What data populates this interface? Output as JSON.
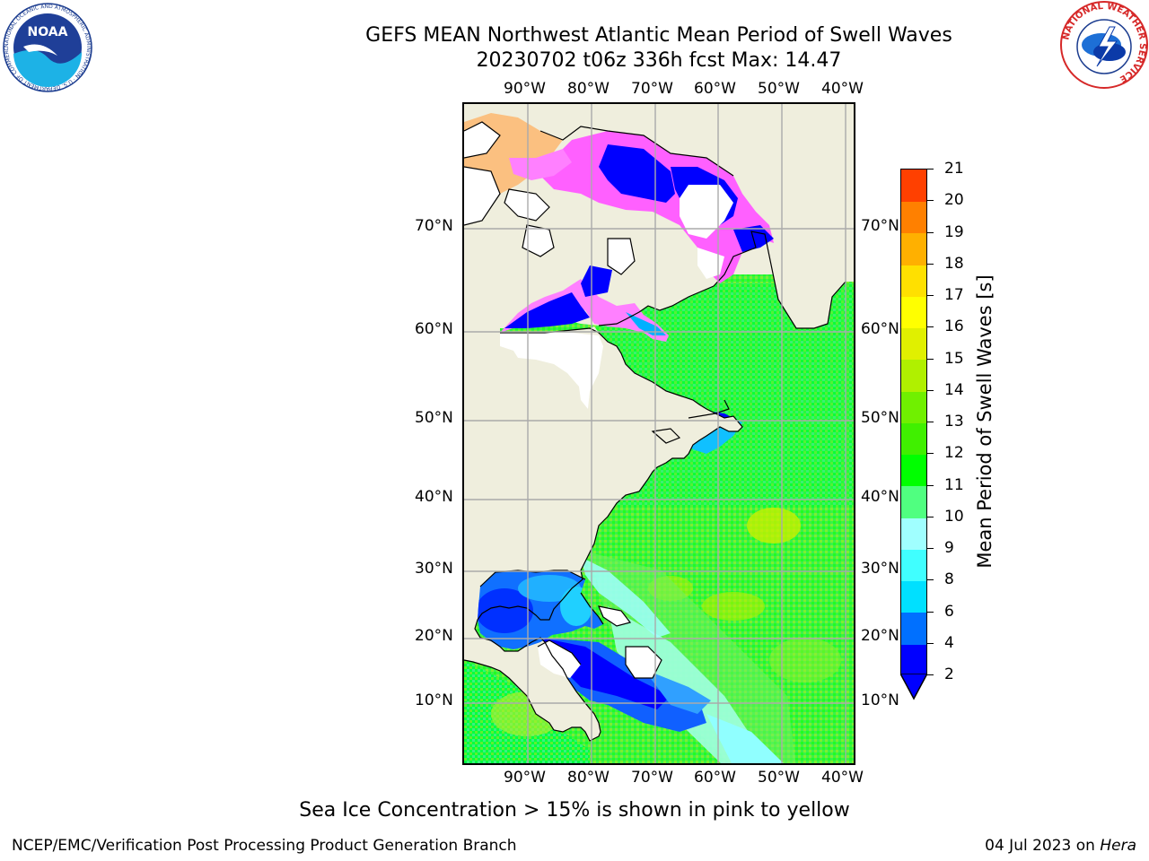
{
  "title": {
    "line1": "GEFS MEAN Northwest Atlantic Mean Period of Swell Waves",
    "line2": "20230702 t06z 336h fcst   Max: 14.47"
  },
  "map": {
    "lon_labels": [
      "90°W",
      "80°W",
      "70°W",
      "60°W",
      "50°W",
      "40°W"
    ],
    "lat_labels": [
      "70°N",
      "60°N",
      "50°N",
      "40°N",
      "30°N",
      "20°N",
      "10°N"
    ],
    "colors": {
      "land": "#efeedd",
      "ice": "#ffffff",
      "gridline": "#aaaaaa"
    }
  },
  "colorbar": {
    "title": "Mean Period of Swell Waves [s]",
    "tick_labels": [
      "2",
      "4",
      "6",
      "8",
      "9",
      "10",
      "11",
      "12",
      "13",
      "14",
      "15",
      "16",
      "17",
      "18",
      "19",
      "20",
      "21"
    ],
    "colors": [
      "#0000ff",
      "#0070ff",
      "#00e0ff",
      "#40ffff",
      "#a0ffff",
      "#50ff80",
      "#00ff00",
      "#40f000",
      "#70f000",
      "#b0f000",
      "#e0f000",
      "#ffff00",
      "#ffe000",
      "#ffb000",
      "#ff8000",
      "#ff4000",
      "#ff0000"
    ],
    "extend_min_color": "#0000ff"
  },
  "caption": "Sea Ice Concentration > 15% is shown in pink to yellow",
  "footer": {
    "left": "NCEP/EMC/Verification Post Processing Product Generation Branch",
    "date": "04 Jul 2023 on",
    "host": "Hera"
  },
  "logos": {
    "noaa_text": "NOAA",
    "noaa_ring": "NATIONAL OCEANIC AND ATMOSPHERIC ADMINISTRATION · U.S. DEPARTMENT OF COMMERCE",
    "nws_ring": "NATIONAL WEATHER SERVICE"
  }
}
